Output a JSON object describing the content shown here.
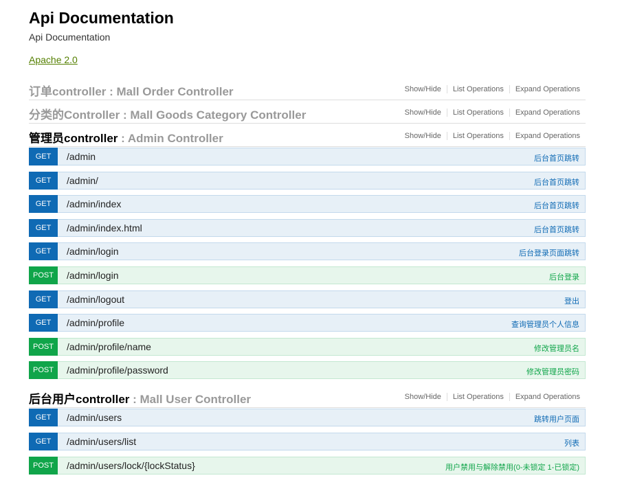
{
  "header": {
    "title": "Api Documentation",
    "description": "Api Documentation",
    "license": "Apache 2.0"
  },
  "resources": [
    {
      "name": "订单controller",
      "description": " : Mall Order Controller",
      "options": [
        "Show/Hide",
        "List Operations",
        "Expand Operations"
      ],
      "operations": []
    },
    {
      "name": "分类的Controller",
      "description": " : Mall Goods Category Controller",
      "options": [
        "Show/Hide",
        "List Operations",
        "Expand Operations"
      ],
      "operations": []
    },
    {
      "name": "管理员controller",
      "description": " : Admin Controller",
      "options": [
        "Show/Hide",
        "List Operations",
        "Expand Operations"
      ],
      "operations": [
        {
          "method": "GET",
          "path": "/admin",
          "summary": "后台首页跳转"
        },
        {
          "method": "GET",
          "path": "/admin/",
          "summary": "后台首页跳转"
        },
        {
          "method": "GET",
          "path": "/admin/index",
          "summary": "后台首页跳转"
        },
        {
          "method": "GET",
          "path": "/admin/index.html",
          "summary": "后台首页跳转"
        },
        {
          "method": "GET",
          "path": "/admin/login",
          "summary": "后台登录页面跳转"
        },
        {
          "method": "POST",
          "path": "/admin/login",
          "summary": "后台登录"
        },
        {
          "method": "GET",
          "path": "/admin/logout",
          "summary": "登出"
        },
        {
          "method": "GET",
          "path": "/admin/profile",
          "summary": "查询管理员个人信息"
        },
        {
          "method": "POST",
          "path": "/admin/profile/name",
          "summary": "修改管理员名"
        },
        {
          "method": "POST",
          "path": "/admin/profile/password",
          "summary": "修改管理员密码"
        }
      ]
    },
    {
      "name": "后台用户controller",
      "description": " : Mall User Controller",
      "options": [
        "Show/Hide",
        "List Operations",
        "Expand Operations"
      ],
      "operations": [
        {
          "method": "GET",
          "path": "/admin/users",
          "summary": "跳转用户页面"
        },
        {
          "method": "GET",
          "path": "/admin/users/list",
          "summary": "列表"
        },
        {
          "method": "POST",
          "path": "/admin/users/lock/{lockStatus}",
          "summary": "用户禁用与解除禁用(0-未锁定 1-已锁定)"
        }
      ]
    }
  ]
}
